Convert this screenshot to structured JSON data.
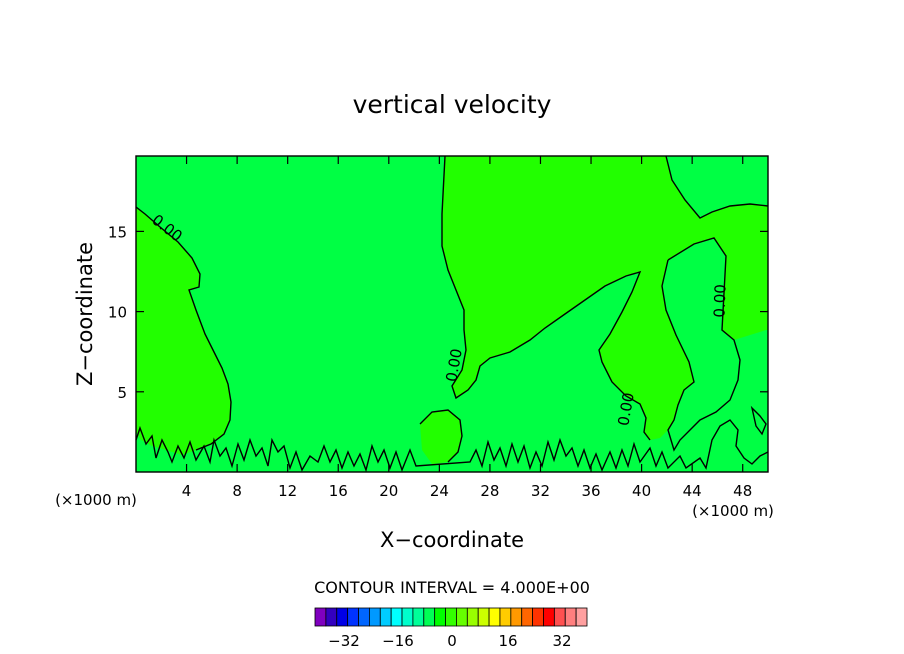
{
  "chart_data": {
    "type": "contour",
    "title": "vertical velocity",
    "xlabel": "X−coordinate",
    "ylabel": "Z−coordinate",
    "x_unit_left": "(×1000 m)",
    "x_unit_right": "(×1000 m)",
    "xlim": [
      0,
      50
    ],
    "ylim": [
      0,
      19.7
    ],
    "x_ticks": [
      4,
      8,
      12,
      16,
      20,
      24,
      28,
      32,
      36,
      40,
      44,
      48
    ],
    "y_ticks": [
      5,
      10,
      15
    ],
    "contour_labels": [
      "0.00",
      "0.00",
      "0.00",
      "0.00"
    ],
    "contour_interval_text": "CONTOUR INTERVAL = 4.000E+00",
    "colorbar": {
      "colors": [
        "#7f00bf",
        "#3300bf",
        "#0000e6",
        "#0033ff",
        "#0066ff",
        "#0099ff",
        "#00ccff",
        "#00ffff",
        "#00ffcc",
        "#00ff99",
        "#00ff55",
        "#00ff00",
        "#33ff00",
        "#66ff00",
        "#99ff00",
        "#ccff00",
        "#ffff00",
        "#ffcc00",
        "#ff9900",
        "#ff6600",
        "#ff3300",
        "#ff0000",
        "#ff5050",
        "#ff7f7f",
        "#ffa0a0"
      ],
      "tick_labels": [
        "−32",
        "−16",
        "0",
        "16",
        "32"
      ]
    },
    "fill_colors": {
      "near_zero_positive": "#22ff00",
      "near_zero_negative": "#00ff44"
    }
  }
}
